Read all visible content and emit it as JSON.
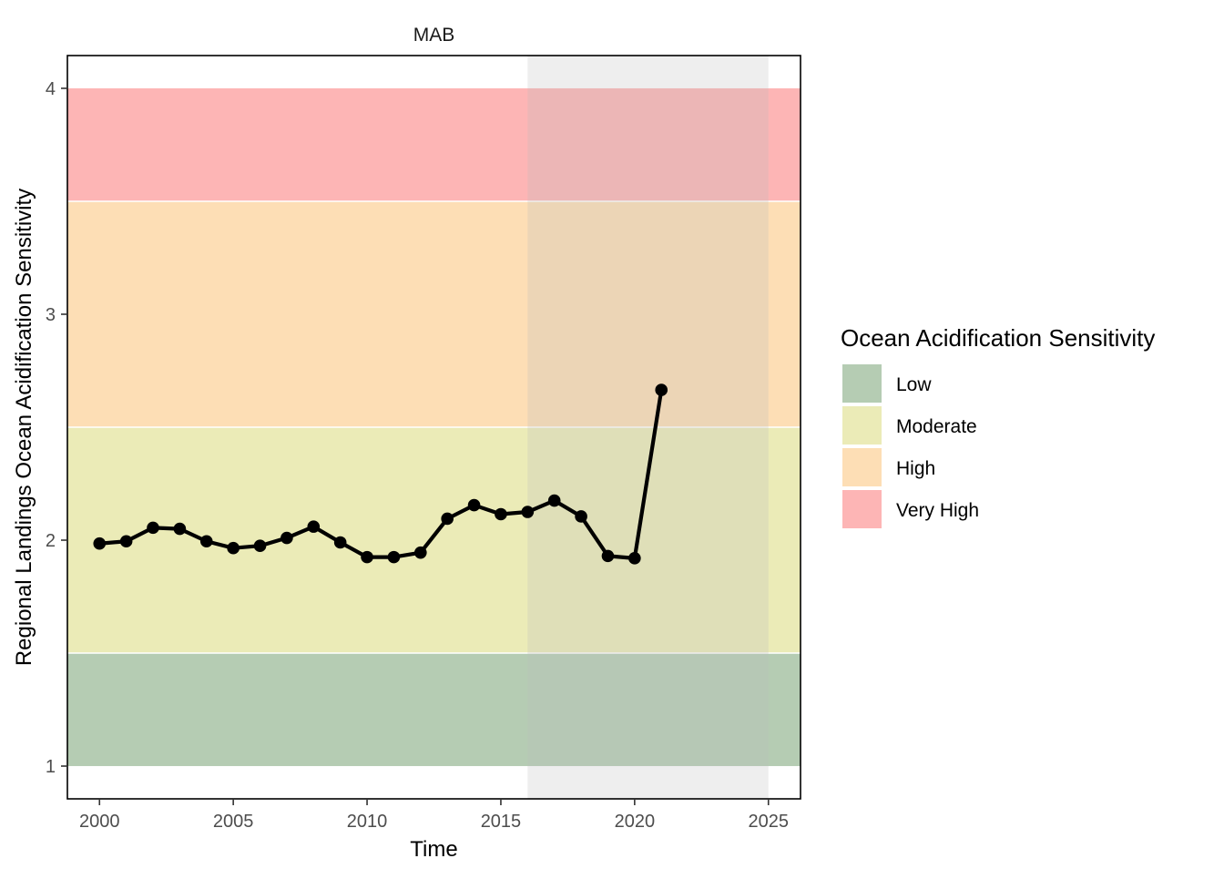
{
  "chart_data": {
    "type": "line",
    "facet_title": "MAB",
    "xlabel": "Time",
    "ylabel": "Regional Landings Ocean Acidification Sensitivity",
    "xlim": [
      1998.8,
      2026.2
    ],
    "ylim": [
      0.855,
      4.145
    ],
    "x_ticks": [
      2000,
      2005,
      2010,
      2015,
      2020,
      2025
    ],
    "y_ticks": [
      1,
      2,
      3,
      4
    ],
    "highlight_range": [
      2016,
      2025
    ],
    "bands": [
      {
        "label": "Low",
        "ymin": 1.0,
        "ymax": 1.5,
        "color": "#B5CCB3"
      },
      {
        "label": "Moderate",
        "ymin": 1.5,
        "ymax": 2.5,
        "color": "#EBEBB7"
      },
      {
        "label": "High",
        "ymin": 2.5,
        "ymax": 3.5,
        "color": "#FDDEB5"
      },
      {
        "label": "Very High",
        "ymin": 3.5,
        "ymax": 4.0,
        "color": "#FDB5B5"
      }
    ],
    "series": [
      {
        "x": [
          2000,
          2001,
          2002,
          2003,
          2004,
          2005,
          2006,
          2007,
          2008,
          2009,
          2010,
          2011,
          2012,
          2013,
          2014,
          2015,
          2016,
          2017,
          2018,
          2019,
          2020,
          2021
        ],
        "values": [
          1.985,
          1.995,
          2.055,
          2.05,
          1.995,
          1.965,
          1.975,
          2.01,
          2.06,
          1.99,
          1.925,
          1.925,
          1.945,
          2.095,
          2.155,
          2.115,
          2.125,
          2.175,
          2.105,
          1.93,
          1.92,
          2.665
        ],
        "color": "#000000"
      }
    ],
    "legend": {
      "title": "Ocean Acidification Sensitivity",
      "position": "right",
      "entries": [
        "Low",
        "Moderate",
        "High",
        "Very High"
      ]
    }
  }
}
